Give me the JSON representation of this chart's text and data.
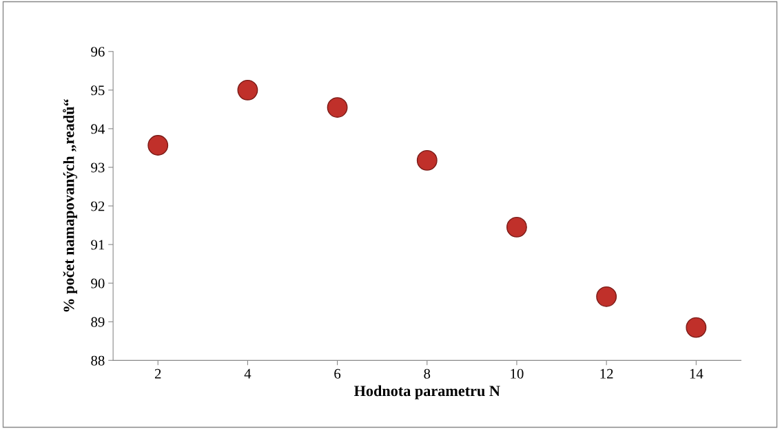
{
  "chart_data": {
    "type": "scatter",
    "xlabel": "Hodnota parametru N",
    "ylabel": "% počet namapovaných „readů“",
    "x": [
      2,
      4,
      6,
      8,
      10,
      12,
      14
    ],
    "series": [
      {
        "color": "#c0302a",
        "values": [
          93.57,
          95.0,
          94.55,
          93.18,
          91.45,
          89.65,
          88.85
        ]
      }
    ],
    "xlim": [
      1,
      15
    ],
    "xticks": [
      2,
      4,
      6,
      8,
      10,
      12,
      14
    ],
    "ylim": [
      88,
      96
    ],
    "yticks": [
      88,
      89,
      90,
      91,
      92,
      93,
      94,
      95,
      96
    ],
    "grid": false,
    "legend": false,
    "marker": "circle"
  }
}
